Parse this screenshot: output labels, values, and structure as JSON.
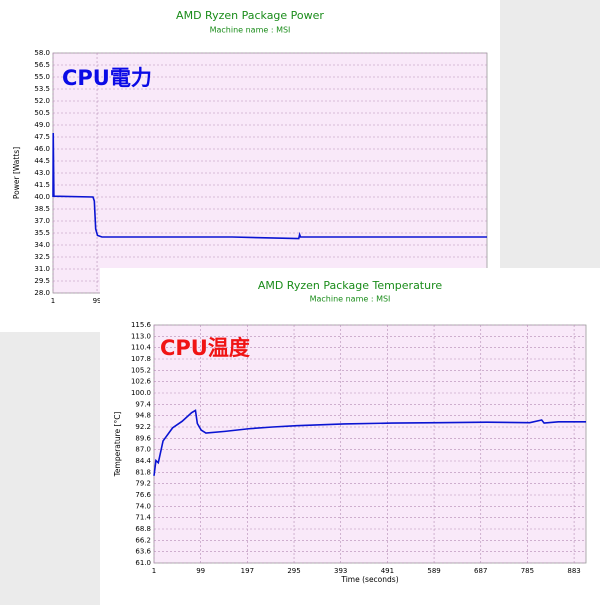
{
  "chart_data": [
    {
      "type": "line",
      "title": "AMD Ryzen Package Power",
      "subtitle": "Machine name : MSI",
      "ylabel": "Power [Watts]",
      "annotation": "CPU電力",
      "annotation_color": "#0a0ae6",
      "xlim": [
        1,
        967
      ],
      "xticks": [
        1,
        99
      ],
      "ylim": [
        28,
        58
      ],
      "yticks": [
        {
          "value": 28,
          "label": "28.0"
        },
        29.5,
        {
          "value": 31,
          "label": "31.0"
        },
        32.5,
        {
          "value": 34,
          "label": "34.0"
        },
        35.5,
        {
          "value": 37,
          "label": "37.0"
        },
        38.5,
        {
          "value": 40,
          "label": "40.0"
        },
        41.5,
        {
          "value": 43,
          "label": "43.0"
        },
        44.5,
        {
          "value": 46,
          "label": "46.0"
        },
        47.5,
        {
          "value": 49,
          "label": "49.0"
        },
        50.5,
        {
          "value": 52,
          "label": "52.0"
        },
        53.5,
        {
          "value": 55,
          "label": "55.0"
        },
        56.5,
        {
          "value": 58,
          "label": "58.0"
        }
      ],
      "grid": true,
      "series": [
        {
          "name": "Package Power",
          "color": "#0a14d2",
          "x": [
            1,
            1.5,
            3,
            90,
            93,
            96,
            100,
            110,
            130,
            200,
            400,
            548,
            550,
            552,
            700,
            967
          ],
          "values": [
            40,
            48,
            40.1,
            40,
            39.5,
            36,
            35.2,
            35.0,
            35.0,
            35.0,
            35.0,
            34.8,
            35.3,
            35.0,
            35.0,
            35.0
          ]
        }
      ]
    },
    {
      "type": "line",
      "title": "AMD Ryzen Package Temperature",
      "subtitle": "Machine name : MSI",
      "xlabel": "Time (seconds)",
      "ylabel": "Temperature [°C]",
      "annotation": "CPU温度",
      "annotation_color": "#f01414",
      "xlim": [
        1,
        908
      ],
      "xticks": [
        1,
        99,
        197,
        295,
        393,
        491,
        589,
        687,
        785,
        883
      ],
      "ylim": [
        61,
        115.6
      ],
      "yticks": [
        {
          "value": 61,
          "label": "61.0"
        },
        63.6,
        66.2,
        68.8,
        71.4,
        {
          "value": 74,
          "label": "74.0"
        },
        76.6,
        79.2,
        81.8,
        84.4,
        {
          "value": 87,
          "label": "87.0"
        },
        89.6,
        92.2,
        94.8,
        97.4,
        {
          "value": 100,
          "label": "100.0"
        },
        102.6,
        105.2,
        107.8,
        110.4,
        {
          "value": 113,
          "label": "113.0"
        },
        115.6
      ],
      "grid": true,
      "series": [
        {
          "name": "Package Temperature",
          "color": "#0a14d2",
          "x": [
            1,
            5,
            10,
            20,
            40,
            60,
            80,
            88,
            92,
            100,
            110,
            150,
            200,
            250,
            300,
            350,
            400,
            500,
            600,
            700,
            790,
            815,
            820,
            850,
            908
          ],
          "values": [
            81,
            84.5,
            84,
            89,
            92,
            93.5,
            95.5,
            96,
            93,
            91.5,
            90.8,
            91.2,
            91.8,
            92.2,
            92.5,
            92.7,
            92.9,
            93.1,
            93.2,
            93.3,
            93.2,
            93.8,
            93.1,
            93.4,
            93.4
          ]
        }
      ]
    }
  ]
}
